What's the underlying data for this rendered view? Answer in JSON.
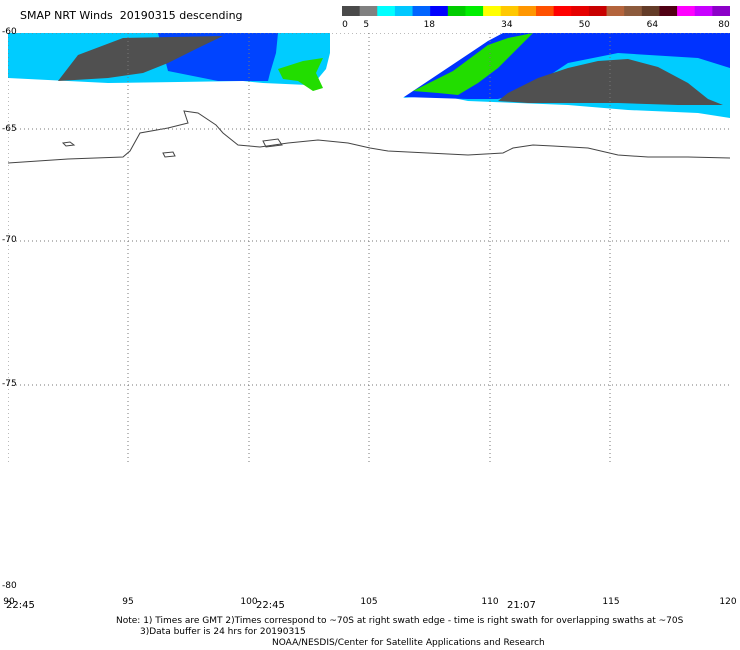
{
  "title": "SMAP NRT Winds  20190315 descending",
  "scale": {
    "colors": [
      "#4a4a4a",
      "#808080",
      "#00ffff",
      "#00c8ff",
      "#0064ff",
      "#0000ff",
      "#00cc00",
      "#00ee00",
      "#ffff00",
      "#ffc800",
      "#ff9600",
      "#ff5000",
      "#ff0000",
      "#e60000",
      "#c80000",
      "#b4643c",
      "#8c5a3c",
      "#643c28",
      "#500014",
      "#ff00ff",
      "#c800ff",
      "#8c00c8"
    ],
    "labels": [
      "0",
      "5",
      "18",
      "34",
      "50",
      "64",
      "80"
    ],
    "values": [
      0,
      5,
      18,
      34,
      50,
      64,
      80
    ],
    "max": 80
  },
  "map": {
    "lat_labels": [
      "-60",
      "-65",
      "-70",
      "-75",
      "-80"
    ],
    "lon_labels": [
      "90",
      "95",
      "100",
      "105",
      "110",
      "115",
      "120"
    ],
    "time_labels": [
      "22:45",
      "22:45",
      "21:07"
    ]
  },
  "notes": {
    "line1": "Note: 1) Times are GMT 2)Times correspond to ~70S at right swath edge - time is right swath for overlapping swaths at ~70S",
    "line2": "3)Data buffer is 24 hrs for 20190315",
    "line3": "NOAA/NESDIS/Center for Satellite Applications and Research"
  }
}
